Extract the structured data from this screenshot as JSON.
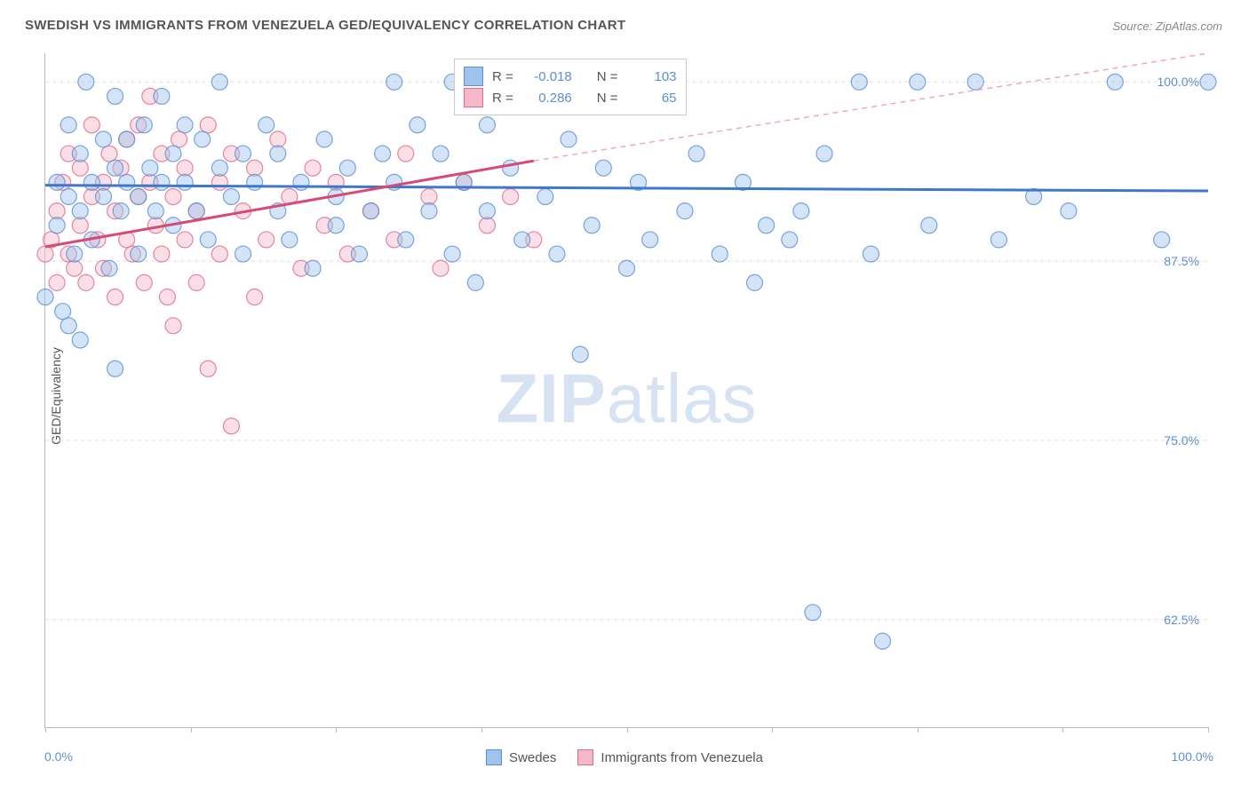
{
  "title": "SWEDISH VS IMMIGRANTS FROM VENEZUELA GED/EQUIVALENCY CORRELATION CHART",
  "source": "Source: ZipAtlas.com",
  "watermark_a": "ZIP",
  "watermark_b": "atlas",
  "y_axis_label": "GED/Equivalency",
  "chart": {
    "type": "scatter",
    "x_min": 0,
    "x_max": 100,
    "y_min": 55,
    "y_max": 102,
    "x_min_label": "0.0%",
    "x_max_label": "100.0%",
    "y_ticks": [
      62.5,
      75.0,
      87.5,
      100.0
    ],
    "y_tick_labels": [
      "62.5%",
      "75.0%",
      "87.5%",
      "100.0%"
    ],
    "x_tick_positions": [
      0,
      12.5,
      25,
      37.5,
      50,
      62.5,
      75,
      87.5,
      100
    ],
    "grid_color": "#dddddd",
    "axis_color": "#bbbbbb",
    "tick_label_color": "#5b8fd6",
    "background_color": "#ffffff",
    "point_radius": 9,
    "point_opacity": 0.45,
    "series": [
      {
        "name": "Swedes",
        "color_fill": "#9ec3ec",
        "color_stroke": "#5b8fd6",
        "R": "-0.018",
        "N": "103",
        "trend": {
          "y_at_x0": 92.8,
          "y_at_x100": 92.4,
          "stroke": "#3f78c9",
          "width": 3
        },
        "points": [
          [
            0,
            85
          ],
          [
            1,
            90
          ],
          [
            1,
            93
          ],
          [
            1.5,
            84
          ],
          [
            2,
            97
          ],
          [
            2,
            92
          ],
          [
            2.5,
            88
          ],
          [
            3,
            95
          ],
          [
            3,
            91
          ],
          [
            3.5,
            100
          ],
          [
            4,
            93
          ],
          [
            4,
            89
          ],
          [
            5,
            96
          ],
          [
            5,
            92
          ],
          [
            5.5,
            87
          ],
          [
            6,
            94
          ],
          [
            6,
            99
          ],
          [
            6.5,
            91
          ],
          [
            7,
            93
          ],
          [
            7,
            96
          ],
          [
            8,
            92
          ],
          [
            8,
            88
          ],
          [
            8.5,
            97
          ],
          [
            9,
            94
          ],
          [
            9.5,
            91
          ],
          [
            10,
            93
          ],
          [
            10,
            99
          ],
          [
            11,
            95
          ],
          [
            11,
            90
          ],
          [
            12,
            97
          ],
          [
            12,
            93
          ],
          [
            13,
            91
          ],
          [
            13.5,
            96
          ],
          [
            14,
            89
          ],
          [
            15,
            94
          ],
          [
            15,
            100
          ],
          [
            16,
            92
          ],
          [
            17,
            95
          ],
          [
            17,
            88
          ],
          [
            18,
            93
          ],
          [
            19,
            97
          ],
          [
            20,
            91
          ],
          [
            20,
            95
          ],
          [
            21,
            89
          ],
          [
            22,
            93
          ],
          [
            23,
            87
          ],
          [
            24,
            96
          ],
          [
            25,
            92
          ],
          [
            25,
            90
          ],
          [
            26,
            94
          ],
          [
            27,
            88
          ],
          [
            28,
            91
          ],
          [
            29,
            95
          ],
          [
            30,
            100
          ],
          [
            30,
            93
          ],
          [
            31,
            89
          ],
          [
            32,
            97
          ],
          [
            33,
            91
          ],
          [
            34,
            95
          ],
          [
            35,
            100
          ],
          [
            35,
            88
          ],
          [
            36,
            93
          ],
          [
            37,
            86
          ],
          [
            38,
            91
          ],
          [
            38,
            97
          ],
          [
            40,
            94
          ],
          [
            41,
            89
          ],
          [
            42,
            100
          ],
          [
            43,
            92
          ],
          [
            44,
            88
          ],
          [
            45,
            96
          ],
          [
            46,
            81
          ],
          [
            47,
            90
          ],
          [
            48,
            94
          ],
          [
            50,
            87
          ],
          [
            51,
            93
          ],
          [
            52,
            89
          ],
          [
            54,
            100
          ],
          [
            55,
            91
          ],
          [
            56,
            95
          ],
          [
            58,
            88
          ],
          [
            60,
            93
          ],
          [
            61,
            86
          ],
          [
            62,
            90
          ],
          [
            64,
            89
          ],
          [
            65,
            91
          ],
          [
            66,
            63
          ],
          [
            67,
            95
          ],
          [
            70,
            100
          ],
          [
            71,
            88
          ],
          [
            72,
            61
          ],
          [
            75,
            100
          ],
          [
            76,
            90
          ],
          [
            80,
            100
          ],
          [
            82,
            89
          ],
          [
            85,
            92
          ],
          [
            88,
            91
          ],
          [
            92,
            100
          ],
          [
            96,
            89
          ],
          [
            100,
            100
          ],
          [
            3,
            82
          ],
          [
            6,
            80
          ],
          [
            2,
            83
          ]
        ]
      },
      {
        "name": "Immigrants from Venezuela",
        "color_fill": "#f4b9c8",
        "color_stroke": "#e06a8a",
        "R": "0.286",
        "N": "65",
        "trend_solid": {
          "y_at_x0": 88.5,
          "y_at_x42": 94.5,
          "stroke": "#d84a75",
          "width": 3
        },
        "trend_dashed": {
          "y_at_x42": 94.5,
          "y_at_x100": 102,
          "stroke": "#f0a8bb",
          "width": 1.5,
          "dash": "6 5"
        },
        "points": [
          [
            0,
            88
          ],
          [
            0.5,
            89
          ],
          [
            1,
            91
          ],
          [
            1,
            86
          ],
          [
            1.5,
            93
          ],
          [
            2,
            88
          ],
          [
            2,
            95
          ],
          [
            2.5,
            87
          ],
          [
            3,
            90
          ],
          [
            3,
            94
          ],
          [
            3.5,
            86
          ],
          [
            4,
            92
          ],
          [
            4,
            97
          ],
          [
            4.5,
            89
          ],
          [
            5,
            93
          ],
          [
            5,
            87
          ],
          [
            5.5,
            95
          ],
          [
            6,
            91
          ],
          [
            6,
            85
          ],
          [
            6.5,
            94
          ],
          [
            7,
            89
          ],
          [
            7,
            96
          ],
          [
            7.5,
            88
          ],
          [
            8,
            92
          ],
          [
            8,
            97
          ],
          [
            8.5,
            86
          ],
          [
            9,
            93
          ],
          [
            9,
            99
          ],
          [
            9.5,
            90
          ],
          [
            10,
            95
          ],
          [
            10,
            88
          ],
          [
            10.5,
            85
          ],
          [
            11,
            92
          ],
          [
            11,
            83
          ],
          [
            11.5,
            96
          ],
          [
            12,
            89
          ],
          [
            12,
            94
          ],
          [
            13,
            86
          ],
          [
            13,
            91
          ],
          [
            14,
            97
          ],
          [
            14,
            80
          ],
          [
            15,
            93
          ],
          [
            15,
            88
          ],
          [
            16,
            95
          ],
          [
            16,
            76
          ],
          [
            17,
            91
          ],
          [
            18,
            94
          ],
          [
            18,
            85
          ],
          [
            19,
            89
          ],
          [
            20,
            96
          ],
          [
            21,
            92
          ],
          [
            22,
            87
          ],
          [
            23,
            94
          ],
          [
            24,
            90
          ],
          [
            25,
            93
          ],
          [
            26,
            88
          ],
          [
            28,
            91
          ],
          [
            30,
            89
          ],
          [
            31,
            95
          ],
          [
            33,
            92
          ],
          [
            34,
            87
          ],
          [
            36,
            93
          ],
          [
            38,
            90
          ],
          [
            40,
            92
          ],
          [
            42,
            89
          ]
        ]
      }
    ]
  },
  "legend": {
    "series1": "Swedes",
    "series2": "Immigrants from Venezuela"
  },
  "stats_labels": {
    "R": "R =",
    "N": "N ="
  }
}
